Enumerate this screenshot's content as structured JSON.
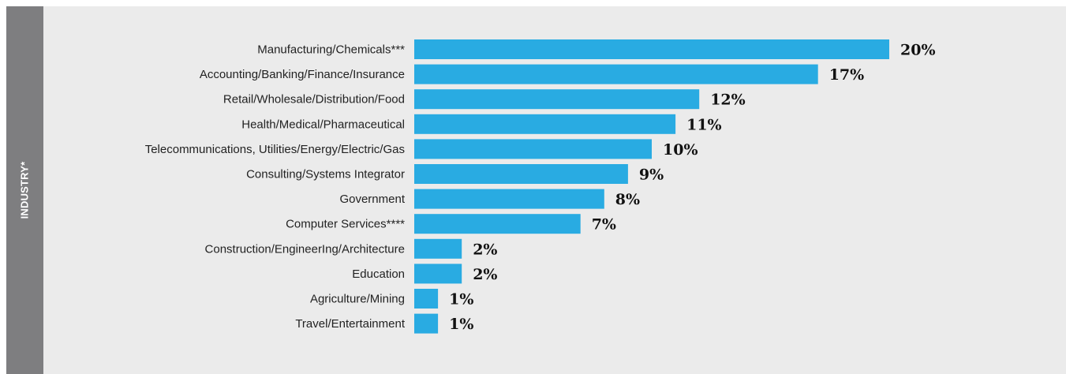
{
  "chart_data": {
    "type": "bar",
    "orientation": "horizontal",
    "ylabel": "INDUSTRY*",
    "categories": [
      "Manufacturing/Chemicals***",
      "Accounting/Banking/Finance/Insurance",
      "Retail/Wholesale/Distribution/Food",
      "Health/Medical/Pharmaceutical",
      "Telecommunications, Utilities/Energy/Electric/Gas",
      "Consulting/Systems Integrator",
      "Government",
      "Computer Services****",
      "Construction/EngineerIng/Architecture",
      "Education",
      "Agriculture/Mining",
      "Travel/Entertainment"
    ],
    "values": [
      20,
      17,
      12,
      11,
      10,
      9,
      8,
      7,
      2,
      2,
      1,
      1
    ],
    "value_labels": [
      "20%",
      "17%",
      "12%",
      "11%",
      "10%",
      "9%",
      "8%",
      "7%",
      "2%",
      "2%",
      "1%",
      "1%"
    ],
    "bar_color": "#29abe2",
    "grid": false,
    "legend": "none"
  }
}
